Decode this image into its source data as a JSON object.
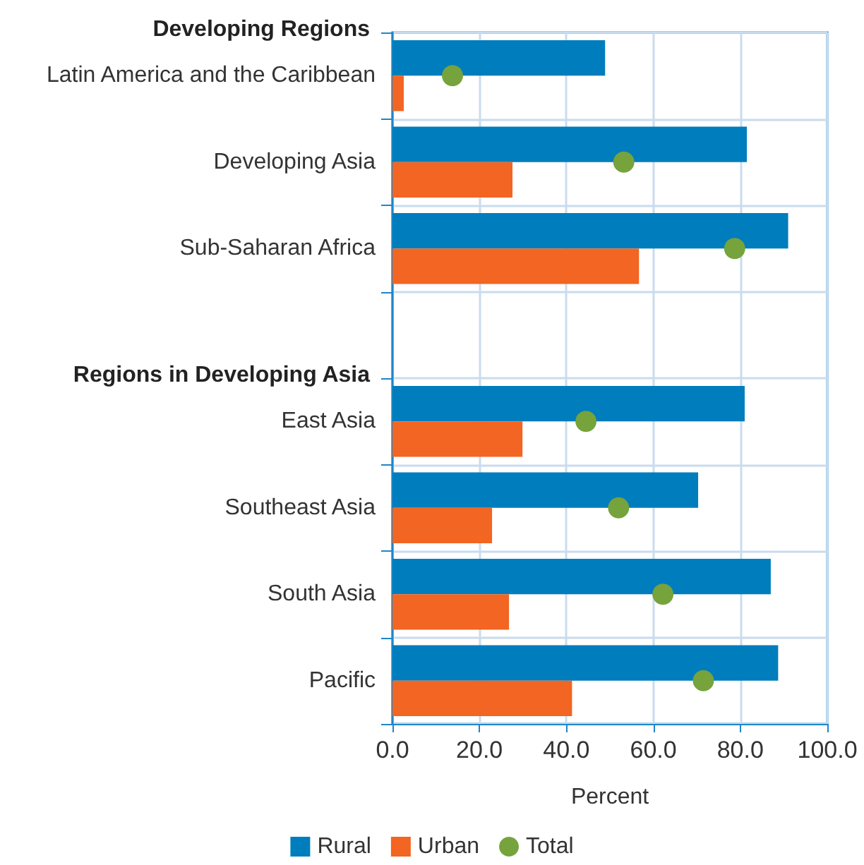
{
  "chart_data": {
    "type": "bar",
    "orientation": "horizontal",
    "categories": [
      "Latin America and the Caribbean",
      "Developing Asia",
      "Sub-Saharan Africa",
      null,
      "East Asia",
      "Southeast Asia",
      "South Asia",
      "Pacific"
    ],
    "series": [
      {
        "name": "Rural",
        "color": "#007dbc",
        "values": [
          48.9,
          81.5,
          91.0,
          null,
          81.0,
          70.3,
          87.0,
          88.7
        ]
      },
      {
        "name": "Urban",
        "color": "#f26522",
        "values": [
          2.6,
          27.6,
          56.7,
          null,
          29.9,
          22.9,
          26.8,
          41.3
        ]
      },
      {
        "name": "Total",
        "type": "scatter",
        "color": "#76a33c",
        "values": [
          13.8,
          53.2,
          78.7,
          null,
          44.5,
          52.0,
          62.2,
          71.5
        ]
      }
    ],
    "xlabel": "Percent",
    "xlim": [
      0,
      100
    ],
    "xticks": [
      {
        "value": 0,
        "label": "0.0"
      },
      {
        "value": 20,
        "label": "20.0"
      },
      {
        "value": 40,
        "label": "40.0"
      },
      {
        "value": 60,
        "label": "60.0"
      },
      {
        "value": 80,
        "label": "80.0"
      },
      {
        "value": 100,
        "label": "100.0"
      }
    ],
    "annotations": [
      "Developing Regions",
      "Regions in Developing Asia"
    ],
    "grid": true,
    "legend": "bottom",
    "marker": "circle"
  }
}
